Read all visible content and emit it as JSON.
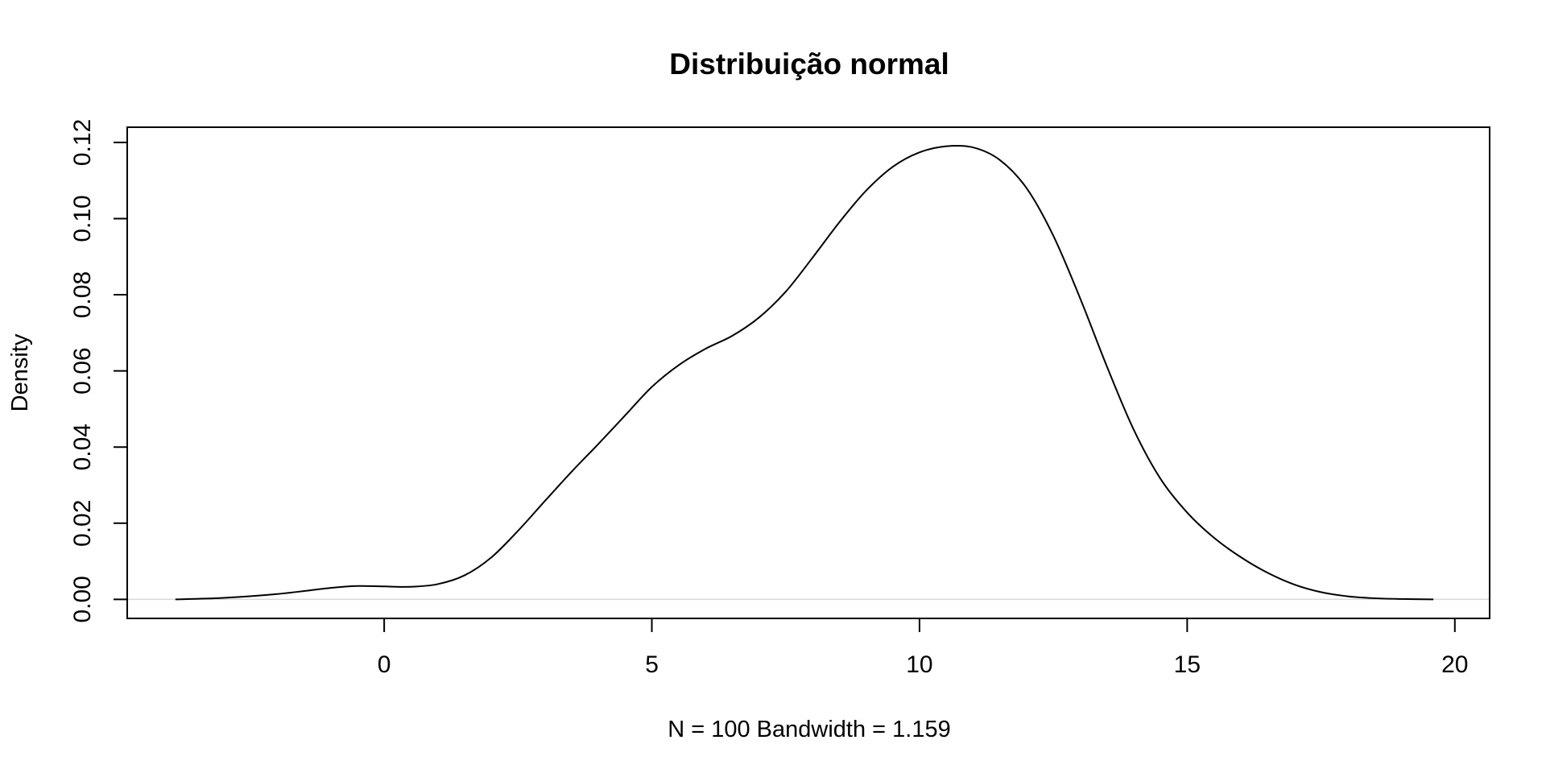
{
  "chart_data": {
    "type": "line",
    "title": "Distribuição normal",
    "xlabel": "N = 100   Bandwidth = 1.159",
    "ylabel": "Density",
    "xlim": [
      -4.8,
      20.65
    ],
    "ylim": [
      -0.005,
      0.124
    ],
    "xticks": [
      0,
      5,
      10,
      15,
      20
    ],
    "xtick_labels": [
      "0",
      "5",
      "10",
      "15",
      "20"
    ],
    "yticks": [
      0.0,
      0.02,
      0.04,
      0.06,
      0.08,
      0.1,
      0.12
    ],
    "ytick_labels": [
      "0.00",
      "0.02",
      "0.04",
      "0.06",
      "0.08",
      "0.10",
      "0.12"
    ],
    "zero_line_color": "#d9d9d9",
    "line_color": "#000000",
    "grid": false,
    "legend": "none",
    "series": [
      {
        "x": [
          -3.9,
          -3.0,
          -2.0,
          -1.0,
          -0.5,
          0.0,
          0.5,
          1.0,
          1.5,
          2.0,
          2.5,
          3.0,
          3.5,
          4.0,
          4.5,
          5.0,
          5.5,
          6.0,
          6.5,
          7.0,
          7.5,
          8.0,
          8.5,
          9.0,
          9.5,
          10.0,
          10.5,
          11.0,
          11.5,
          12.0,
          12.5,
          13.0,
          13.5,
          14.0,
          14.5,
          15.0,
          15.5,
          16.0,
          16.5,
          17.0,
          17.5,
          18.0,
          18.5,
          19.0,
          19.6
        ],
        "y": [
          0.0,
          0.0004,
          0.0014,
          0.003,
          0.0035,
          0.0034,
          0.0033,
          0.004,
          0.0063,
          0.011,
          0.018,
          0.0258,
          0.0335,
          0.0408,
          0.0483,
          0.0558,
          0.0615,
          0.0658,
          0.0692,
          0.074,
          0.0808,
          0.0897,
          0.099,
          0.1073,
          0.1136,
          0.1174,
          0.119,
          0.1187,
          0.1154,
          0.108,
          0.0955,
          0.0791,
          0.0612,
          0.0446,
          0.0317,
          0.0228,
          0.0162,
          0.0111,
          0.007,
          0.0039,
          0.0019,
          0.0008,
          0.0003,
          0.0001,
          0.0
        ]
      }
    ]
  }
}
